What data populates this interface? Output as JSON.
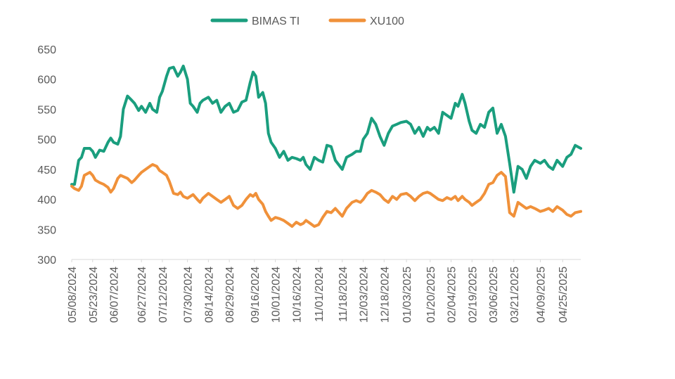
{
  "chart_data": {
    "type": "line",
    "title": "",
    "xlabel": "",
    "ylabel": "",
    "ylim": [
      300,
      650
    ],
    "yticks": [
      300,
      350,
      400,
      450,
      500,
      550,
      600,
      650
    ],
    "grid": false,
    "legend": "top-center",
    "x_range": [
      "05/08/2024",
      "05/08/2025"
    ],
    "x_ticks": [
      "05/08/2024",
      "05/23/2024",
      "06/07/2024",
      "06/27/2024",
      "07/12/2024",
      "07/30/2024",
      "08/14/2024",
      "08/29/2024",
      "09/16/2024",
      "10/01/2024",
      "10/16/2024",
      "11/01/2024",
      "11/18/2024",
      "12/03/2024",
      "12/18/2024",
      "01/03/2025",
      "01/20/2025",
      "02/04/2025",
      "02/19/2025",
      "03/06/2025",
      "03/21/2025",
      "04/09/2025",
      "04/25/2025"
    ],
    "series": [
      {
        "name": "BIMAS TI",
        "color": "#1a9e7e",
        "points": [
          [
            "05/08/2024",
            425
          ],
          [
            "05/10/2024",
            425
          ],
          [
            "05/13/2024",
            465
          ],
          [
            "05/15/2024",
            470
          ],
          [
            "05/17/2024",
            485
          ],
          [
            "05/21/2024",
            485
          ],
          [
            "05/23/2024",
            480
          ],
          [
            "05/25/2024",
            470
          ],
          [
            "05/28/2024",
            482
          ],
          [
            "05/31/2024",
            480
          ],
          [
            "06/03/2024",
            495
          ],
          [
            "06/05/2024",
            502
          ],
          [
            "06/07/2024",
            495
          ],
          [
            "06/10/2024",
            492
          ],
          [
            "06/12/2024",
            505
          ],
          [
            "06/14/2024",
            550
          ],
          [
            "06/17/2024",
            572
          ],
          [
            "06/20/2024",
            565
          ],
          [
            "06/22/2024",
            560
          ],
          [
            "06/25/2024",
            548
          ],
          [
            "06/27/2024",
            555
          ],
          [
            "06/30/2024",
            545
          ],
          [
            "07/03/2024",
            560
          ],
          [
            "07/05/2024",
            550
          ],
          [
            "07/08/2024",
            545
          ],
          [
            "07/10/2024",
            570
          ],
          [
            "07/12/2024",
            580
          ],
          [
            "07/15/2024",
            605
          ],
          [
            "07/17/2024",
            618
          ],
          [
            "07/20/2024",
            620
          ],
          [
            "07/23/2024",
            605
          ],
          [
            "07/25/2024",
            612
          ],
          [
            "07/27/2024",
            622
          ],
          [
            "07/30/2024",
            600
          ],
          [
            "08/01/2024",
            560
          ],
          [
            "08/03/2024",
            555
          ],
          [
            "08/06/2024",
            545
          ],
          [
            "08/08/2024",
            560
          ],
          [
            "08/10/2024",
            565
          ],
          [
            "08/14/2024",
            570
          ],
          [
            "08/17/2024",
            560
          ],
          [
            "08/20/2024",
            565
          ],
          [
            "08/23/2024",
            545
          ],
          [
            "08/26/2024",
            555
          ],
          [
            "08/29/2024",
            560
          ],
          [
            "09/01/2024",
            545
          ],
          [
            "09/04/2024",
            548
          ],
          [
            "09/07/2024",
            562
          ],
          [
            "09/10/2024",
            565
          ],
          [
            "09/13/2024",
            595
          ],
          [
            "09/15/2024",
            612
          ],
          [
            "09/17/2024",
            605
          ],
          [
            "09/19/2024",
            570
          ],
          [
            "09/22/2024",
            578
          ],
          [
            "09/24/2024",
            560
          ],
          [
            "09/26/2024",
            510
          ],
          [
            "09/28/2024",
            495
          ],
          [
            "10/01/2024",
            485
          ],
          [
            "10/04/2024",
            470
          ],
          [
            "10/07/2024",
            480
          ],
          [
            "10/10/2024",
            465
          ],
          [
            "10/13/2024",
            470
          ],
          [
            "10/16/2024",
            468
          ],
          [
            "10/19/2024",
            465
          ],
          [
            "10/21/2024",
            470
          ],
          [
            "10/23/2024",
            458
          ],
          [
            "10/26/2024",
            450
          ],
          [
            "10/29/2024",
            470
          ],
          [
            "11/01/2024",
            465
          ],
          [
            "11/04/2024",
            462
          ],
          [
            "11/07/2024",
            490
          ],
          [
            "11/10/2024",
            488
          ],
          [
            "11/13/2024",
            465
          ],
          [
            "11/18/2024",
            450
          ],
          [
            "11/21/2024",
            470
          ],
          [
            "11/25/2024",
            475
          ],
          [
            "11/28/2024",
            480
          ],
          [
            "12/01/2024",
            480
          ],
          [
            "12/03/2024",
            500
          ],
          [
            "12/06/2024",
            510
          ],
          [
            "12/09/2024",
            535
          ],
          [
            "12/12/2024",
            525
          ],
          [
            "12/15/2024",
            505
          ],
          [
            "12/18/2024",
            490
          ],
          [
            "12/21/2024",
            510
          ],
          [
            "12/24/2024",
            522
          ],
          [
            "12/27/2024",
            525
          ],
          [
            "12/30/2024",
            528
          ],
          [
            "01/03/2025",
            530
          ],
          [
            "01/06/2025",
            525
          ],
          [
            "01/09/2025",
            510
          ],
          [
            "01/12/2025",
            520
          ],
          [
            "01/15/2025",
            505
          ],
          [
            "01/18/2025",
            520
          ],
          [
            "01/20/2025",
            515
          ],
          [
            "01/23/2025",
            520
          ],
          [
            "01/26/2025",
            510
          ],
          [
            "01/29/2025",
            545
          ],
          [
            "02/01/2025",
            540
          ],
          [
            "02/04/2025",
            535
          ],
          [
            "02/07/2025",
            560
          ],
          [
            "02/09/2025",
            555
          ],
          [
            "02/12/2025",
            575
          ],
          [
            "02/14/2025",
            560
          ],
          [
            "02/17/2025",
            530
          ],
          [
            "02/19/2025",
            515
          ],
          [
            "02/22/2025",
            510
          ],
          [
            "02/25/2025",
            525
          ],
          [
            "02/28/2025",
            520
          ],
          [
            "03/03/2025",
            545
          ],
          [
            "03/06/2025",
            552
          ],
          [
            "03/09/2025",
            510
          ],
          [
            "03/12/2025",
            525
          ],
          [
            "03/15/2025",
            505
          ],
          [
            "03/18/2025",
            460
          ],
          [
            "03/21/2025",
            412
          ],
          [
            "03/24/2025",
            455
          ],
          [
            "03/27/2025",
            450
          ],
          [
            "03/30/2025",
            435
          ],
          [
            "04/02/2025",
            455
          ],
          [
            "04/05/2025",
            465
          ],
          [
            "04/09/2025",
            460
          ],
          [
            "04/12/2025",
            465
          ],
          [
            "04/15/2025",
            455
          ],
          [
            "04/18/2025",
            450
          ],
          [
            "04/21/2025",
            465
          ],
          [
            "04/25/2025",
            455
          ],
          [
            "04/28/2025",
            470
          ],
          [
            "05/01/2025",
            475
          ],
          [
            "05/04/2025",
            490
          ],
          [
            "05/08/2025",
            485
          ]
        ]
      },
      {
        "name": "XU100",
        "color": "#f0913a",
        "points": [
          [
            "05/08/2024",
            422
          ],
          [
            "05/10/2024",
            418
          ],
          [
            "05/13/2024",
            415
          ],
          [
            "05/15/2024",
            422
          ],
          [
            "05/17/2024",
            440
          ],
          [
            "05/21/2024",
            445
          ],
          [
            "05/23/2024",
            440
          ],
          [
            "05/25/2024",
            432
          ],
          [
            "05/28/2024",
            428
          ],
          [
            "05/31/2024",
            425
          ],
          [
            "06/03/2024",
            420
          ],
          [
            "06/05/2024",
            412
          ],
          [
            "06/07/2024",
            418
          ],
          [
            "06/10/2024",
            435
          ],
          [
            "06/12/2024",
            440
          ],
          [
            "06/14/2024",
            438
          ],
          [
            "06/17/2024",
            435
          ],
          [
            "06/20/2024",
            428
          ],
          [
            "06/22/2024",
            432
          ],
          [
            "06/25/2024",
            440
          ],
          [
            "06/27/2024",
            445
          ],
          [
            "06/30/2024",
            450
          ],
          [
            "07/03/2024",
            455
          ],
          [
            "07/05/2024",
            458
          ],
          [
            "07/08/2024",
            455
          ],
          [
            "07/10/2024",
            448
          ],
          [
            "07/12/2024",
            445
          ],
          [
            "07/15/2024",
            440
          ],
          [
            "07/17/2024",
            430
          ],
          [
            "07/20/2024",
            410
          ],
          [
            "07/23/2024",
            408
          ],
          [
            "07/25/2024",
            412
          ],
          [
            "07/27/2024",
            405
          ],
          [
            "07/30/2024",
            402
          ],
          [
            "08/01/2024",
            405
          ],
          [
            "08/03/2024",
            408
          ],
          [
            "08/06/2024",
            400
          ],
          [
            "08/08/2024",
            395
          ],
          [
            "08/10/2024",
            402
          ],
          [
            "08/14/2024",
            410
          ],
          [
            "08/17/2024",
            405
          ],
          [
            "08/20/2024",
            400
          ],
          [
            "08/23/2024",
            395
          ],
          [
            "08/26/2024",
            400
          ],
          [
            "08/29/2024",
            405
          ],
          [
            "09/01/2024",
            390
          ],
          [
            "09/04/2024",
            385
          ],
          [
            "09/07/2024",
            390
          ],
          [
            "09/10/2024",
            400
          ],
          [
            "09/13/2024",
            408
          ],
          [
            "09/15/2024",
            405
          ],
          [
            "09/17/2024",
            410
          ],
          [
            "09/19/2024",
            400
          ],
          [
            "09/22/2024",
            392
          ],
          [
            "09/24/2024",
            380
          ],
          [
            "09/26/2024",
            372
          ],
          [
            "09/28/2024",
            365
          ],
          [
            "10/01/2024",
            370
          ],
          [
            "10/04/2024",
            368
          ],
          [
            "10/07/2024",
            365
          ],
          [
            "10/10/2024",
            360
          ],
          [
            "10/13/2024",
            355
          ],
          [
            "10/16/2024",
            362
          ],
          [
            "10/19/2024",
            358
          ],
          [
            "10/21/2024",
            360
          ],
          [
            "10/23/2024",
            365
          ],
          [
            "10/26/2024",
            360
          ],
          [
            "10/29/2024",
            355
          ],
          [
            "11/01/2024",
            358
          ],
          [
            "11/04/2024",
            370
          ],
          [
            "11/07/2024",
            380
          ],
          [
            "11/10/2024",
            378
          ],
          [
            "11/13/2024",
            385
          ],
          [
            "11/18/2024",
            372
          ],
          [
            "11/21/2024",
            385
          ],
          [
            "11/25/2024",
            395
          ],
          [
            "11/28/2024",
            398
          ],
          [
            "12/01/2024",
            395
          ],
          [
            "12/03/2024",
            400
          ],
          [
            "12/06/2024",
            410
          ],
          [
            "12/09/2024",
            415
          ],
          [
            "12/12/2024",
            412
          ],
          [
            "12/15/2024",
            408
          ],
          [
            "12/18/2024",
            400
          ],
          [
            "12/21/2024",
            395
          ],
          [
            "12/24/2024",
            405
          ],
          [
            "12/27/2024",
            400
          ],
          [
            "12/30/2024",
            408
          ],
          [
            "01/03/2025",
            410
          ],
          [
            "01/06/2025",
            405
          ],
          [
            "01/09/2025",
            398
          ],
          [
            "01/12/2025",
            405
          ],
          [
            "01/15/2025",
            410
          ],
          [
            "01/18/2025",
            412
          ],
          [
            "01/20/2025",
            410
          ],
          [
            "01/23/2025",
            405
          ],
          [
            "01/26/2025",
            400
          ],
          [
            "01/29/2025",
            398
          ],
          [
            "02/01/2025",
            403
          ],
          [
            "02/04/2025",
            400
          ],
          [
            "02/07/2025",
            405
          ],
          [
            "02/09/2025",
            398
          ],
          [
            "02/12/2025",
            405
          ],
          [
            "02/14/2025",
            400
          ],
          [
            "02/17/2025",
            395
          ],
          [
            "02/19/2025",
            390
          ],
          [
            "02/22/2025",
            395
          ],
          [
            "02/25/2025",
            400
          ],
          [
            "02/28/2025",
            410
          ],
          [
            "03/03/2025",
            425
          ],
          [
            "03/06/2025",
            428
          ],
          [
            "03/09/2025",
            440
          ],
          [
            "03/12/2025",
            445
          ],
          [
            "03/15/2025",
            438
          ],
          [
            "03/18/2025",
            378
          ],
          [
            "03/21/2025",
            372
          ],
          [
            "03/24/2025",
            395
          ],
          [
            "03/27/2025",
            390
          ],
          [
            "03/30/2025",
            385
          ],
          [
            "04/02/2025",
            388
          ],
          [
            "04/05/2025",
            385
          ],
          [
            "04/09/2025",
            380
          ],
          [
            "04/12/2025",
            382
          ],
          [
            "04/15/2025",
            385
          ],
          [
            "04/18/2025",
            380
          ],
          [
            "04/21/2025",
            388
          ],
          [
            "04/25/2025",
            382
          ],
          [
            "04/28/2025",
            375
          ],
          [
            "05/01/2025",
            372
          ],
          [
            "05/04/2025",
            378
          ],
          [
            "05/08/2025",
            380
          ]
        ]
      }
    ]
  }
}
